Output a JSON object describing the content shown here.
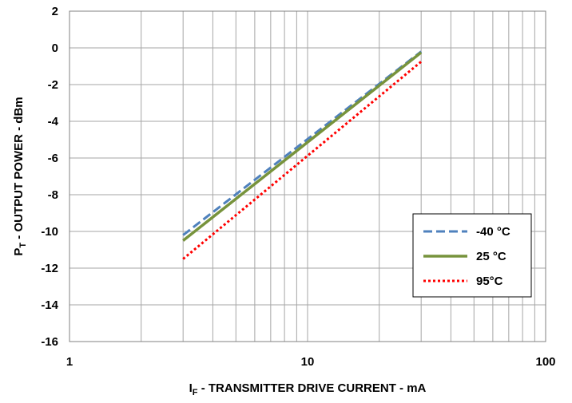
{
  "chart_data": {
    "type": "line",
    "title": "",
    "x_scale": "log",
    "xlim": [
      1,
      100
    ],
    "ylim": [
      -16,
      2
    ],
    "grid": true,
    "legend_position": "right",
    "xlabel": {
      "main": "I",
      "sub": "F",
      "rest": " - TRANSMITTER DRIVE CURRENT - mA"
    },
    "ylabel": {
      "main": "P",
      "sub": "T",
      "rest": " - OUTPUT POWER - dBm"
    },
    "x_ticks": [
      {
        "value": 1,
        "label": "1"
      },
      {
        "value": 10,
        "label": "10"
      },
      {
        "value": 100,
        "label": "100"
      }
    ],
    "y_ticks": [
      {
        "value": 2,
        "label": "2"
      },
      {
        "value": 0,
        "label": "0"
      },
      {
        "value": -2,
        "label": "-2"
      },
      {
        "value": -4,
        "label": "-4"
      },
      {
        "value": -6,
        "label": "-6"
      },
      {
        "value": -8,
        "label": "-8"
      },
      {
        "value": -10,
        "label": "-10"
      },
      {
        "value": -12,
        "label": "-12"
      },
      {
        "value": -14,
        "label": "-14"
      },
      {
        "value": -16,
        "label": "-16"
      }
    ],
    "series": [
      {
        "name": "-40 °C",
        "color": "#4f81bd",
        "style": "dashed",
        "x": [
          3,
          30
        ],
        "y": [
          -10.2,
          -0.2
        ]
      },
      {
        "name": "25 °C",
        "color": "#77933c",
        "style": "solid",
        "x": [
          3,
          30
        ],
        "y": [
          -10.5,
          -0.25
        ]
      },
      {
        "name": "95°C",
        "color": "#ff0000",
        "style": "dotted",
        "x": [
          3,
          30
        ],
        "y": [
          -11.5,
          -0.75
        ]
      }
    ]
  }
}
